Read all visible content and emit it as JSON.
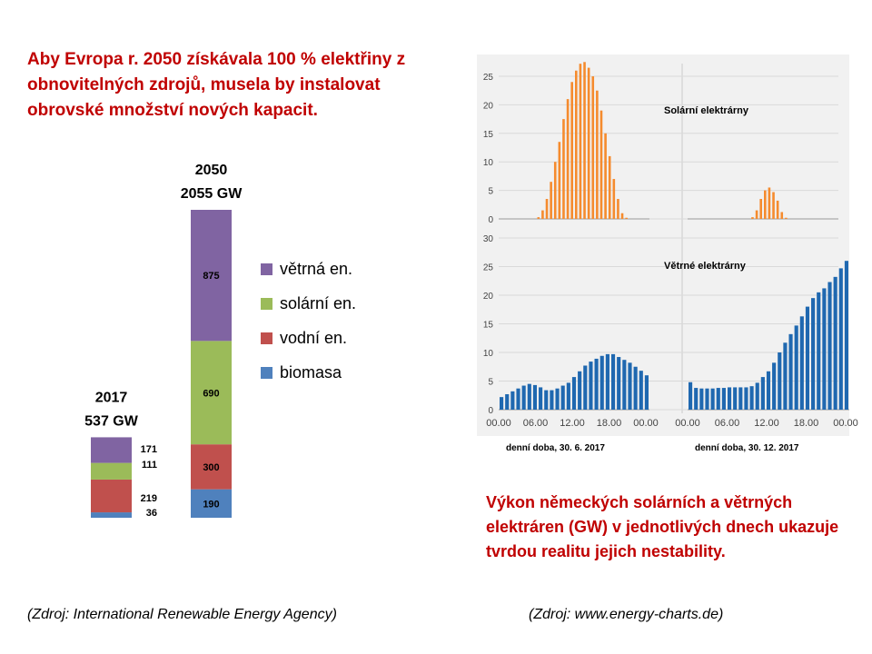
{
  "headline": "Aby Evropa r. 2050 získávala 100 % elektřiny z obnovitelných zdrojů, musela by instalovat obrovské množství nových kapacit.",
  "caption": "Výkon německých solárních a větrných elektráren (GW) v jednotlivých dnech ukazuje tvrdou realitu jejich nestability.",
  "source_left": "(Zdroj: International Renewable Energy Agency)",
  "source_right": "(Zdroj: www.energy-charts.de)",
  "colors": {
    "wind": "#8064a2",
    "solar": "#9bbb59",
    "hydro": "#c0504d",
    "biomass": "#4f81bd",
    "solar_hist": "#f58b2e",
    "wind_hist": "#1f68b0",
    "accent": "#c00000"
  },
  "chart_data": [
    {
      "type": "bar",
      "stacked": true,
      "categories": [
        "2017",
        "2050"
      ],
      "category_totals": [
        "537 GW",
        "2055 GW"
      ],
      "series": [
        {
          "name": "biomasa",
          "values": [
            36,
            190
          ]
        },
        {
          "name": "vodní en.",
          "values": [
            219,
            300
          ]
        },
        {
          "name": "solární en.",
          "values": [
            111,
            690
          ]
        },
        {
          "name": "větrná en.",
          "values": [
            171,
            875
          ]
        }
      ],
      "legend_order": [
        "větrná en.",
        "solární en.",
        "vodní en.",
        "biomasa"
      ],
      "legend_position": "right"
    },
    {
      "type": "bar",
      "title": "Solární elektrárny",
      "xlabel": "denní doba, 30. 6. 2017",
      "xticks": [
        "00.00",
        "06.00",
        "12.00",
        "18.00",
        "00.00"
      ],
      "yticks": [
        "0",
        "5",
        "10",
        "15",
        "20",
        "25"
      ],
      "ylim": [
        0,
        28
      ],
      "values": [
        0,
        0,
        0,
        0,
        0,
        0,
        0,
        0,
        0,
        0.3,
        1.5,
        3.5,
        6.5,
        10,
        13.5,
        17.5,
        21,
        24,
        26,
        27.2,
        27.5,
        26.5,
        25,
        22.5,
        19,
        15,
        11,
        7,
        3.5,
        1,
        0.2,
        0,
        0,
        0,
        0,
        0
      ]
    },
    {
      "type": "bar",
      "title": "",
      "xlabel": "denní doba, 30. 12. 2017",
      "xticks": [],
      "yticks": [],
      "ylim": [
        0,
        28
      ],
      "values": [
        0,
        0,
        0,
        0,
        0,
        0,
        0,
        0,
        0,
        0,
        0,
        0,
        0,
        0,
        0,
        0.3,
        1.5,
        3.5,
        5,
        5.5,
        4.7,
        3.2,
        1.2,
        0.2,
        0,
        0,
        0,
        0,
        0,
        0,
        0,
        0,
        0,
        0,
        0,
        0
      ]
    },
    {
      "type": "bar",
      "title": "Větrné elektrárny",
      "xlabel": "denní doba, 30. 6. 2017",
      "xticks": [
        "00.00",
        "06.00",
        "12.00",
        "18.00",
        "00.00"
      ],
      "yticks": [
        "0",
        "5",
        "10",
        "15",
        "20",
        "25",
        "30"
      ],
      "ylim": [
        0,
        30
      ],
      "values": [
        2.2,
        2.7,
        3.2,
        3.7,
        4.2,
        4.5,
        4.3,
        3.9,
        3.4,
        3.4,
        3.7,
        4.2,
        4.7,
        5.7,
        6.7,
        7.7,
        8.4,
        8.9,
        9.4,
        9.7,
        9.7,
        9.2,
        8.7,
        8.2,
        7.5,
        6.8,
        6
      ]
    },
    {
      "type": "bar",
      "title": "",
      "xlabel": "denní doba, 30. 12. 2017",
      "xticks": [
        "00.00",
        "06.00",
        "12.00",
        "18.00",
        "00.00"
      ],
      "yticks": [],
      "ylim": [
        0,
        30
      ],
      "values": [
        4.8,
        3.8,
        3.7,
        3.7,
        3.7,
        3.8,
        3.8,
        3.9,
        3.9,
        3.9,
        3.9,
        4.1,
        4.7,
        5.7,
        6.7,
        8.2,
        10,
        11.7,
        13.2,
        14.7,
        16.3,
        18,
        19.5,
        20.5,
        21.2,
        22.3,
        23.2,
        24.7,
        26
      ]
    }
  ]
}
